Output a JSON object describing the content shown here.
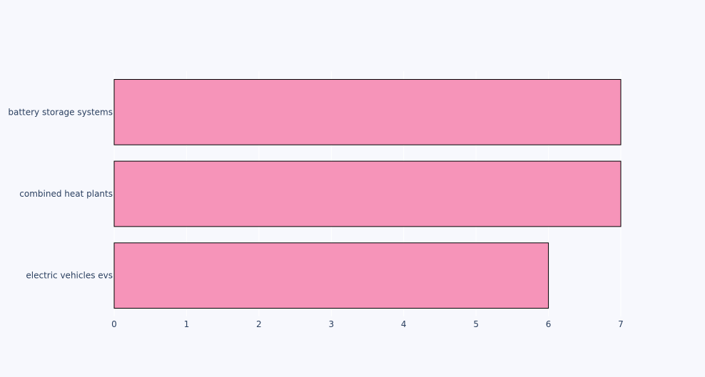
{
  "colors": {
    "background": "#f7f8fd",
    "bar_fill": "#f694b9",
    "bar_stroke": "#000000",
    "grid": "#ffffff",
    "text": "#2a3f5f"
  },
  "chart_data": {
    "type": "bar",
    "orientation": "horizontal",
    "categories": [
      "battery storage systems",
      "combined heat plants",
      "electric vehicles evs"
    ],
    "values": [
      7,
      7,
      6
    ],
    "title": "",
    "xlabel": "",
    "ylabel": "",
    "xlim": [
      0,
      7
    ],
    "xticks": [
      0,
      1,
      2,
      3,
      4,
      5,
      6,
      7
    ],
    "grid": true,
    "legend": false
  }
}
